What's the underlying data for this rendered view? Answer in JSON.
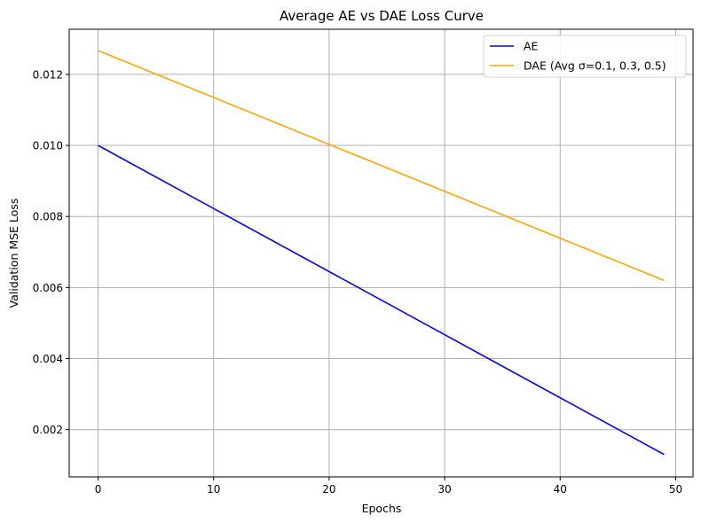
{
  "chart_data": {
    "type": "line",
    "title": "Average AE vs DAE Loss Curve",
    "xlabel": "Epochs",
    "ylabel": "Validation MSE Loss",
    "xlim": [
      -2.5,
      51.5
    ],
    "ylim": [
      0.00067,
      0.01327
    ],
    "xticks": [
      0,
      10,
      20,
      30,
      40,
      50
    ],
    "xtick_labels": [
      "0",
      "10",
      "20",
      "30",
      "40",
      "50"
    ],
    "yticks": [
      0.002,
      0.004,
      0.006,
      0.008,
      0.01,
      0.012
    ],
    "ytick_labels": [
      "0.002",
      "0.004",
      "0.006",
      "0.008",
      "0.010",
      "0.012"
    ],
    "grid": true,
    "legend_position": "top-right",
    "series": [
      {
        "name": "AE",
        "color": "#0000ff",
        "x": [
          0,
          49
        ],
        "y": [
          0.01,
          0.0013
        ]
      },
      {
        "name": "DAE (Avg σ=0.1, 0.3, 0.5)",
        "color": "#ffa500",
        "x": [
          0,
          49
        ],
        "y": [
          0.01267,
          0.0062
        ]
      }
    ]
  }
}
